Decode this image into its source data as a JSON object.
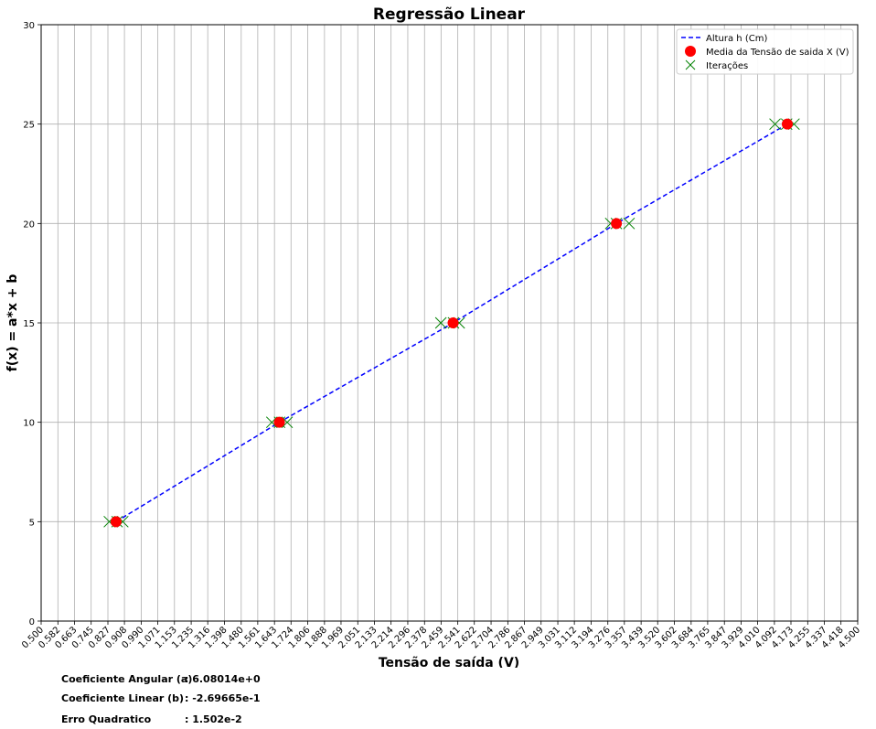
{
  "chart_data": {
    "type": "line",
    "title": "Regressão Linear",
    "xlabel": "Tensão de saída (V)",
    "ylabel": "f(x) = a*x + b",
    "xlim": [
      0.5,
      4.5
    ],
    "ylim": [
      0,
      30
    ],
    "x_ticks": [
      "0.500",
      "0.582",
      "0.663",
      "0.745",
      "0.827",
      "0.908",
      "0.990",
      "1.071",
      "1.153",
      "1.235",
      "1.316",
      "1.398",
      "1.480",
      "1.561",
      "1.643",
      "1.724",
      "1.806",
      "1.888",
      "1.969",
      "2.051",
      "2.133",
      "2.214",
      "2.296",
      "2.378",
      "2.459",
      "2.541",
      "2.622",
      "2.704",
      "2.786",
      "2.867",
      "2.949",
      "3.031",
      "3.112",
      "3.194",
      "3.276",
      "3.357",
      "3.439",
      "3.520",
      "3.602",
      "3.684",
      "3.765",
      "3.847",
      "3.929",
      "4.010",
      "4.092",
      "4.173",
      "4.255",
      "4.337",
      "4.418",
      "4.500"
    ],
    "y_ticks": [
      "0",
      "5",
      "10",
      "15",
      "20",
      "25",
      "30"
    ],
    "grid": true,
    "legend_position": "top-right",
    "series": [
      {
        "name": "Altura h (Cm)",
        "style": "dashed-line",
        "color": "#0000ff",
        "x": [
          0.867,
          1.667,
          2.518,
          3.318,
          4.155
        ],
        "y": [
          5,
          10,
          15,
          20,
          25
        ]
      },
      {
        "name": "Media da Tensão de saida X (V)",
        "style": "circle-marker",
        "color": "#ff0000",
        "x": [
          0.867,
          1.667,
          2.518,
          3.318,
          4.155
        ],
        "y": [
          5,
          10,
          15,
          20,
          25
        ]
      },
      {
        "name": "Iterações",
        "style": "x-marker",
        "color": "#008000",
        "x": [
          0.834,
          0.872,
          0.9,
          1.63,
          1.668,
          1.705,
          2.458,
          2.52,
          2.548,
          3.29,
          3.318,
          3.38,
          4.095,
          4.152,
          4.188
        ],
        "y": [
          5,
          5,
          5,
          10,
          10,
          10,
          15,
          15,
          15,
          20,
          20,
          20,
          25,
          25,
          25
        ]
      }
    ]
  },
  "coefficients": {
    "angular_label": "Coeficiente Angular (a)",
    "angular_value": ": 6.08014e+0",
    "linear_label": "Coeficiente Linear (b)",
    "linear_value": ": -2.69665e-1",
    "error_label": "Erro Quadratico",
    "error_value": ": 1.502e-2"
  }
}
